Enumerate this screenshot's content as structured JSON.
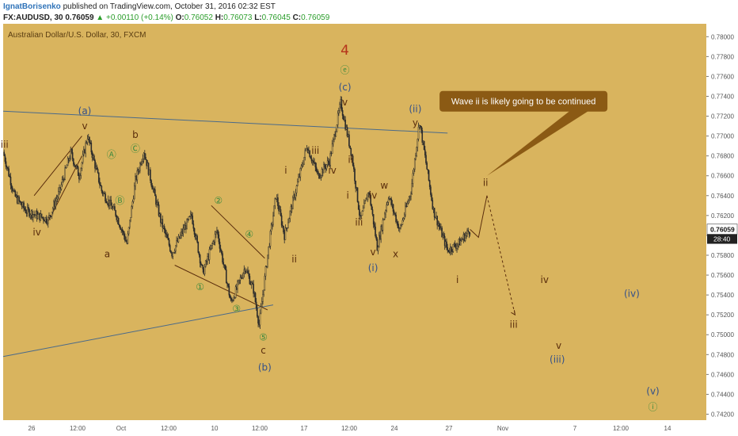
{
  "header": {
    "author": "IgnatBorisenko",
    "published_text": "published on TradingView.com, October 31, 2016 02:32 EST",
    "symbol": "FX:AUDUSD, 30",
    "last": "0.76059",
    "change": "▲ +0.00110 (+0.14%)",
    "o_label": "O:",
    "o_value": "0.76052",
    "h_label": "H:",
    "h_value": "0.76073",
    "l_label": "L:",
    "l_value": "0.76045",
    "c_label": "C:",
    "c_value": "0.76059"
  },
  "colors": {
    "background": "#d9b45e",
    "candles": "#2b2b2b",
    "trendline": "#4a6a8a",
    "wave_brown": "#5a2d0c",
    "wave_blue": "#33508a",
    "wave_green": "#3d8a3d",
    "wave_red": "#b5331a",
    "callout": "#8b5a14"
  },
  "chart_data": {
    "type": "line",
    "subtitle": "Australian Dollar/U.S. Dollar, 30, FXCM",
    "ylim": [
      0.7414,
      0.7813
    ],
    "y_ticks": [
      "0.78000",
      "0.77800",
      "0.77600",
      "0.77400",
      "0.77200",
      "0.77000",
      "0.76800",
      "0.76600",
      "0.76400",
      "0.76200",
      "0.76000",
      "0.75800",
      "0.75600",
      "0.75400",
      "0.75200",
      "0.75000",
      "0.74800",
      "0.74600",
      "0.74400",
      "0.74200"
    ],
    "x_ticks": [
      "26",
      "12:00",
      "Oct",
      "12:00",
      "10",
      "12:00",
      "17",
      "12:00",
      "24",
      "27",
      "Nov",
      "7",
      "12:00",
      "14"
    ],
    "last_price": "0.76059",
    "countdown": "28:40",
    "price_path": [
      {
        "x": 0,
        "y": 0.7684
      },
      {
        "x": 4,
        "y": 0.764
      },
      {
        "x": 8,
        "y": 0.7625
      },
      {
        "x": 12,
        "y": 0.762
      },
      {
        "x": 16,
        "y": 0.7616
      },
      {
        "x": 20,
        "y": 0.7644
      },
      {
        "x": 24,
        "y": 0.7683
      },
      {
        "x": 27,
        "y": 0.766
      },
      {
        "x": 30,
        "y": 0.77
      },
      {
        "x": 35,
        "y": 0.7645
      },
      {
        "x": 40,
        "y": 0.7622
      },
      {
        "x": 44,
        "y": 0.7592
      },
      {
        "x": 47,
        "y": 0.7655
      },
      {
        "x": 50,
        "y": 0.7685
      },
      {
        "x": 56,
        "y": 0.7615
      },
      {
        "x": 60,
        "y": 0.7582
      },
      {
        "x": 64,
        "y": 0.7605
      },
      {
        "x": 67,
        "y": 0.762
      },
      {
        "x": 71,
        "y": 0.7562
      },
      {
        "x": 76,
        "y": 0.7605
      },
      {
        "x": 81,
        "y": 0.7532
      },
      {
        "x": 86,
        "y": 0.7568
      },
      {
        "x": 89,
        "y": 0.7545
      },
      {
        "x": 91,
        "y": 0.751
      },
      {
        "x": 94,
        "y": 0.758
      },
      {
        "x": 97,
        "y": 0.764
      },
      {
        "x": 100,
        "y": 0.76
      },
      {
        "x": 104,
        "y": 0.7645
      },
      {
        "x": 108,
        "y": 0.769
      },
      {
        "x": 112,
        "y": 0.766
      },
      {
        "x": 116,
        "y": 0.7675
      },
      {
        "x": 120,
        "y": 0.7733
      },
      {
        "x": 124,
        "y": 0.768
      },
      {
        "x": 127,
        "y": 0.7615
      },
      {
        "x": 130,
        "y": 0.7645
      },
      {
        "x": 133,
        "y": 0.7588
      },
      {
        "x": 137,
        "y": 0.764
      },
      {
        "x": 141,
        "y": 0.7605
      },
      {
        "x": 145,
        "y": 0.7645
      },
      {
        "x": 148,
        "y": 0.7715
      },
      {
        "x": 153,
        "y": 0.7625
      },
      {
        "x": 158,
        "y": 0.7585
      },
      {
        "x": 162,
        "y": 0.7592
      },
      {
        "x": 166,
        "y": 0.7606
      }
    ],
    "projection": [
      {
        "x": 166,
        "y": 0.7606
      },
      {
        "x": 169,
        "y": 0.7598
      },
      {
        "x": 172,
        "y": 0.764
      },
      {
        "x": 182,
        "y": 0.752
      }
    ],
    "x_max": 250,
    "trendlines": [
      {
        "x1": 0,
        "y1": 0.7725,
        "x2": 158,
        "y2": 0.7703
      },
      {
        "x1": 0,
        "y1": 0.7478,
        "x2": 96,
        "y2": 0.753
      }
    ],
    "channel_lines": [
      {
        "x1": 11,
        "y1": 0.764,
        "x2": 28,
        "y2": 0.77
      },
      {
        "x1": 16,
        "y1": 0.7614,
        "x2": 28,
        "y2": 0.768
      },
      {
        "x1": 61,
        "y1": 0.757,
        "x2": 94,
        "y2": 0.7525
      },
      {
        "x1": 74,
        "y1": 0.763,
        "x2": 93,
        "y2": 0.7577
      }
    ],
    "wave_labels": [
      {
        "text": "iii",
        "x": 0.5,
        "y": 0.7688,
        "color": "brown"
      },
      {
        "text": "iv",
        "x": 12,
        "y": 0.76,
        "color": "brown"
      },
      {
        "text": "(a)",
        "x": 29,
        "y": 0.7722,
        "color": "blue"
      },
      {
        "text": "v",
        "x": 29,
        "y": 0.7707,
        "color": "brown"
      },
      {
        "text": "b",
        "x": 47,
        "y": 0.7698,
        "color": "brown"
      },
      {
        "text": "Ⓒ",
        "x": 47,
        "y": 0.7684,
        "color": "green"
      },
      {
        "text": "Ⓐ",
        "x": 38.5,
        "y": 0.7678,
        "color": "green"
      },
      {
        "text": "Ⓑ",
        "x": 41.5,
        "y": 0.7632,
        "color": "green"
      },
      {
        "text": "a",
        "x": 37,
        "y": 0.7578,
        "color": "brown"
      },
      {
        "text": "②",
        "x": 76.5,
        "y": 0.7632,
        "color": "green"
      },
      {
        "text": "④",
        "x": 87.5,
        "y": 0.7598,
        "color": "green"
      },
      {
        "text": "①",
        "x": 70,
        "y": 0.7545,
        "color": "green"
      },
      {
        "text": "③",
        "x": 83,
        "y": 0.7523,
        "color": "green"
      },
      {
        "text": "⑤",
        "x": 92.5,
        "y": 0.7494,
        "color": "green"
      },
      {
        "text": "c",
        "x": 92.5,
        "y": 0.7481,
        "color": "brown"
      },
      {
        "text": "(b)",
        "x": 93,
        "y": 0.7464,
        "color": "blue"
      },
      {
        "text": "i",
        "x": 100.5,
        "y": 0.7662,
        "color": "brown"
      },
      {
        "text": "ii",
        "x": 103.5,
        "y": 0.7573,
        "color": "brown"
      },
      {
        "text": "iii",
        "x": 111,
        "y": 0.7682,
        "color": "brown"
      },
      {
        "text": "iv",
        "x": 117,
        "y": 0.7662,
        "color": "brown"
      },
      {
        "text": "4",
        "x": 121.5,
        "y": 0.7782,
        "color": "red"
      },
      {
        "text": "ⓔ",
        "x": 121.5,
        "y": 0.7763,
        "color": "green"
      },
      {
        "text": "(c)",
        "x": 121.5,
        "y": 0.7746,
        "color": "blue"
      },
      {
        "text": "v",
        "x": 121.5,
        "y": 0.7731,
        "color": "brown"
      },
      {
        "text": "ii",
        "x": 123.5,
        "y": 0.7673,
        "color": "brown"
      },
      {
        "text": "i",
        "x": 122.5,
        "y": 0.7637,
        "color": "brown"
      },
      {
        "text": "iii",
        "x": 126.5,
        "y": 0.761,
        "color": "brown"
      },
      {
        "text": "iv",
        "x": 131.5,
        "y": 0.7637,
        "color": "brown"
      },
      {
        "text": "v",
        "x": 131.5,
        "y": 0.758,
        "color": "brown"
      },
      {
        "text": "(i)",
        "x": 131.5,
        "y": 0.7564,
        "color": "blue"
      },
      {
        "text": "w",
        "x": 135.5,
        "y": 0.7647,
        "color": "brown"
      },
      {
        "text": "x",
        "x": 139.5,
        "y": 0.7578,
        "color": "brown"
      },
      {
        "text": "(ii)",
        "x": 146.5,
        "y": 0.7724,
        "color": "blue"
      },
      {
        "text": "y",
        "x": 146.5,
        "y": 0.771,
        "color": "brown"
      },
      {
        "text": "i",
        "x": 161.5,
        "y": 0.7552,
        "color": "brown"
      },
      {
        "text": "ii",
        "x": 171.5,
        "y": 0.765,
        "color": "brown"
      },
      {
        "text": "iii",
        "x": 181.5,
        "y": 0.7507,
        "color": "brown"
      },
      {
        "text": "iv",
        "x": 192.5,
        "y": 0.7552,
        "color": "brown"
      },
      {
        "text": "(iv)",
        "x": 223.5,
        "y": 0.7538,
        "color": "blue"
      },
      {
        "text": "v",
        "x": 197.5,
        "y": 0.7486,
        "color": "brown"
      },
      {
        "text": "(iii)",
        "x": 197,
        "y": 0.7472,
        "color": "blue"
      },
      {
        "text": "(v)",
        "x": 231,
        "y": 0.744,
        "color": "blue"
      },
      {
        "text": "ⓘ",
        "x": 231,
        "y": 0.7424,
        "color": "green"
      }
    ],
    "annotations": [
      {
        "text": "Wave ii is likely going to be continued",
        "x": 185,
        "y": 0.7735
      }
    ]
  }
}
